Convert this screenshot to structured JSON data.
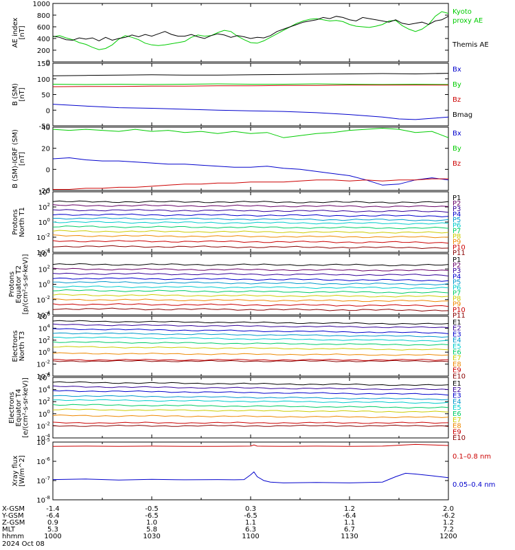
{
  "chart_data": [
    {
      "id": "ae",
      "type": "line",
      "ylabel": [
        "AE index",
        "[nT]"
      ],
      "ylim": [
        0,
        1000
      ],
      "yticks": [
        "0",
        "200",
        "400",
        "600",
        "800",
        "1000"
      ],
      "series": [
        {
          "name": "Kyoto proxy AE",
          "color": "#00cc00",
          "x": [
            0,
            2,
            4,
            6,
            8,
            10,
            12,
            14,
            16,
            18,
            20,
            22,
            24,
            26,
            28,
            30,
            32,
            34,
            36,
            38,
            40,
            42,
            44,
            46,
            48,
            50,
            52,
            54,
            56,
            58,
            60,
            62,
            64,
            66,
            68,
            70,
            72,
            74,
            76,
            78,
            80,
            82,
            84,
            86,
            88,
            90,
            92,
            94,
            96,
            98,
            100,
            102,
            104,
            106,
            108,
            110,
            112,
            114,
            116,
            118,
            120
          ],
          "y": [
            430,
            450,
            410,
            380,
            330,
            300,
            250,
            210,
            230,
            290,
            390,
            450,
            420,
            380,
            320,
            290,
            280,
            290,
            310,
            330,
            350,
            420,
            460,
            440,
            450,
            500,
            540,
            520,
            440,
            380,
            330,
            320,
            360,
            420,
            480,
            540,
            600,
            660,
            700,
            730,
            740,
            720,
            700,
            710,
            690,
            640,
            610,
            600,
            590,
            610,
            640,
            700,
            710,
            620,
            560,
            520,
            560,
            640,
            780,
            860,
            830
          ]
        },
        {
          "name": "Themis AE",
          "color": "#000000",
          "x": [
            0,
            2,
            4,
            6,
            8,
            10,
            12,
            14,
            16,
            18,
            20,
            22,
            24,
            26,
            28,
            30,
            32,
            34,
            36,
            38,
            40,
            42,
            44,
            46,
            48,
            50,
            52,
            54,
            56,
            58,
            60,
            62,
            64,
            66,
            68,
            70,
            72,
            74,
            76,
            78,
            80,
            82,
            84,
            86,
            88,
            90,
            92,
            94,
            96,
            98,
            100,
            102,
            104,
            106,
            108,
            110,
            112,
            114,
            116,
            118,
            120
          ],
          "y": [
            440,
            420,
            380,
            370,
            410,
            390,
            410,
            360,
            420,
            370,
            400,
            420,
            460,
            430,
            470,
            440,
            480,
            520,
            470,
            440,
            440,
            470,
            430,
            400,
            450,
            480,
            460,
            420,
            450,
            430,
            400,
            420,
            410,
            450,
            520,
            560,
            600,
            640,
            680,
            700,
            720,
            760,
            740,
            780,
            760,
            720,
            700,
            760,
            740,
            720,
            700,
            680,
            720,
            660,
            640,
            660,
            680,
            640,
            700,
            720,
            780
          ]
        }
      ],
      "legend": [
        {
          "text": "Kyoto",
          "color": "#00cc00"
        },
        {
          "text": "proxy AE",
          "color": "#00cc00"
        },
        {
          "text": "Themis AE",
          "color": "#000000"
        }
      ]
    },
    {
      "id": "bsm",
      "type": "line",
      "ylabel": [
        "B (SM)",
        "[nT]"
      ],
      "ylim": [
        -50,
        150
      ],
      "yticks": [
        "-50",
        "0",
        "50",
        "100",
        "150"
      ],
      "series": [
        {
          "name": "Bmag",
          "color": "#000000",
          "x": [
            0,
            10,
            20,
            30,
            40,
            50,
            60,
            70,
            80,
            90,
            100,
            110,
            120
          ],
          "y": [
            110,
            111,
            112,
            113,
            112,
            112,
            113,
            114,
            115,
            116,
            117,
            116,
            118
          ]
        },
        {
          "name": "By",
          "color": "#00cc00",
          "x": [
            0,
            10,
            20,
            30,
            40,
            50,
            60,
            70,
            80,
            90,
            100,
            110,
            120
          ],
          "y": [
            83,
            82,
            83,
            82,
            83,
            84,
            83,
            83,
            84,
            83,
            82,
            83,
            82
          ]
        },
        {
          "name": "Bz",
          "color": "#cc0000",
          "x": [
            0,
            10,
            20,
            30,
            40,
            50,
            60,
            70,
            80,
            90,
            100,
            110,
            120
          ],
          "y": [
            75,
            76,
            76,
            77,
            77,
            78,
            78,
            79,
            79,
            80,
            80,
            80,
            80
          ]
        },
        {
          "name": "Bx",
          "color": "#0000cc",
          "x": [
            0,
            10,
            20,
            30,
            40,
            50,
            60,
            70,
            80,
            90,
            100,
            105,
            110,
            115,
            120
          ],
          "y": [
            19,
            13,
            8,
            6,
            3,
            0,
            -2,
            -4,
            -8,
            -14,
            -22,
            -28,
            -30,
            -26,
            -22
          ]
        }
      ],
      "legend": [
        {
          "text": "Bx",
          "color": "#0000cc"
        },
        {
          "text": "By",
          "color": "#00cc00"
        },
        {
          "text": "Bz",
          "color": "#cc0000"
        },
        {
          "text": "Bmag",
          "color": "#000000"
        }
      ]
    },
    {
      "id": "bigrf",
      "type": "line",
      "ylabel": [
        "B (SM)-IGRF (SM)",
        "[nT]"
      ],
      "ylim": [
        -20,
        40
      ],
      "yticks": [
        "-20",
        "0",
        "20",
        "40"
      ],
      "series": [
        {
          "name": "By",
          "color": "#00cc00",
          "x": [
            0,
            5,
            10,
            15,
            20,
            25,
            30,
            35,
            40,
            45,
            50,
            55,
            60,
            65,
            70,
            75,
            80,
            85,
            90,
            95,
            100,
            105,
            110,
            115,
            120
          ],
          "y": [
            38,
            37,
            38,
            37,
            36,
            38,
            36,
            37,
            35,
            36,
            34,
            36,
            34,
            35,
            30,
            32,
            34,
            35,
            37,
            38,
            39,
            38,
            35,
            36,
            30
          ]
        },
        {
          "name": "Bx",
          "color": "#0000cc",
          "x": [
            0,
            5,
            10,
            15,
            20,
            25,
            30,
            35,
            40,
            45,
            50,
            55,
            60,
            65,
            70,
            75,
            80,
            85,
            90,
            95,
            100,
            105,
            110,
            115,
            120
          ],
          "y": [
            10,
            11,
            9,
            8,
            8,
            7,
            6,
            5,
            5,
            4,
            3,
            2,
            2,
            3,
            1,
            0,
            -2,
            -4,
            -6,
            -10,
            -15,
            -14,
            -10,
            -8,
            -10
          ]
        },
        {
          "name": "Bz",
          "color": "#cc0000",
          "x": [
            0,
            5,
            10,
            15,
            20,
            25,
            30,
            35,
            40,
            45,
            50,
            55,
            60,
            65,
            70,
            75,
            80,
            85,
            90,
            95,
            100,
            105,
            110,
            115,
            120
          ],
          "y": [
            -19,
            -19,
            -18,
            -18,
            -17,
            -17,
            -16,
            -15,
            -14,
            -14,
            -13,
            -13,
            -12,
            -12,
            -12,
            -11,
            -10,
            -10,
            -11,
            -10,
            -11,
            -10,
            -10,
            -9,
            -9
          ]
        }
      ],
      "legend": [
        {
          "text": "Bx",
          "color": "#0000cc"
        },
        {
          "text": "By",
          "color": "#00cc00"
        },
        {
          "text": "Bz",
          "color": "#cc0000"
        }
      ]
    },
    {
      "id": "pn",
      "type": "line",
      "log": true,
      "ylabel": [
        "Protons",
        "North T1"
      ],
      "ylim": [
        -4,
        4
      ],
      "yticks": [
        "4",
        "2",
        "0",
        "-2",
        "-4"
      ],
      "series_levels": [
        2.7,
        2.2,
        1.6,
        1.0,
        0.5,
        0.0,
        -0.6,
        -1.2,
        -1.8,
        -2.5,
        -3.2
      ],
      "series_slopes": [
        -0.1,
        -0.15,
        -0.2,
        -0.2,
        -0.25,
        -0.2,
        -0.2,
        -0.2,
        -0.2,
        -0.2,
        -0.2
      ],
      "legend": [
        {
          "text": "P1",
          "color": "#000000"
        },
        {
          "text": "P2",
          "color": "#660066"
        },
        {
          "text": "P3",
          "color": "#330099"
        },
        {
          "text": "P4",
          "color": "#0000cc"
        },
        {
          "text": "P5",
          "color": "#0099cc"
        },
        {
          "text": "P6",
          "color": "#00cccc"
        },
        {
          "text": "P7",
          "color": "#00cc66"
        },
        {
          "text": "P8",
          "color": "#cccc00"
        },
        {
          "text": "P9",
          "color": "#ee8800"
        },
        {
          "text": "P10",
          "color": "#cc0000"
        },
        {
          "text": "P11",
          "color": "#880000"
        }
      ]
    },
    {
      "id": "pe",
      "type": "line",
      "log": true,
      "ylabel": [
        "Protons",
        "Equator T2",
        "[p/(cm²-s-sr-keV)]"
      ],
      "ylim": [
        -4,
        4
      ],
      "yticks": [
        "4",
        "2",
        "0",
        "-2",
        "-4"
      ],
      "series_levels": [
        2.6,
        2.0,
        1.4,
        0.8,
        0.3,
        -0.3,
        -0.8,
        -1.4,
        -2.0,
        -2.6,
        -3.2
      ],
      "series_slopes": [
        -0.1,
        -0.2,
        -0.2,
        -0.3,
        -0.3,
        -0.2,
        -0.3,
        -0.2,
        -0.2,
        -0.2,
        -0.2
      ],
      "legend": [
        {
          "text": "P1",
          "color": "#000000"
        },
        {
          "text": "P2",
          "color": "#660066"
        },
        {
          "text": "P3",
          "color": "#330099"
        },
        {
          "text": "P4",
          "color": "#0000cc"
        },
        {
          "text": "P5",
          "color": "#0099cc"
        },
        {
          "text": "P6",
          "color": "#00cccc"
        },
        {
          "text": "P7",
          "color": "#00cc66"
        },
        {
          "text": "P8",
          "color": "#cccc00"
        },
        {
          "text": "P9",
          "color": "#ee8800"
        },
        {
          "text": "P10",
          "color": "#cc0000"
        },
        {
          "text": "P11",
          "color": "#880000"
        }
      ]
    },
    {
      "id": "en",
      "type": "line",
      "log": true,
      "ylabel": [
        "Electrons",
        "North T3"
      ],
      "ylim": [
        -4,
        6
      ],
      "yticks": [
        "6",
        "4",
        "2",
        "0",
        "-2",
        "-4"
      ],
      "series_levels": [
        5.2,
        4.6,
        3.9,
        3.2,
        2.5,
        1.7,
        0.9,
        -0.2,
        -1.3,
        -1.5
      ],
      "series_slopes": [
        -0.5,
        -0.5,
        -0.7,
        -0.6,
        -0.6,
        -0.5,
        -0.5,
        -0.3,
        0,
        0
      ],
      "legend": [
        {
          "text": "E1",
          "color": "#000000"
        },
        {
          "text": "E2",
          "color": "#330099"
        },
        {
          "text": "E3",
          "color": "#0000cc"
        },
        {
          "text": "E4",
          "color": "#0099cc"
        },
        {
          "text": "E5",
          "color": "#00cccc"
        },
        {
          "text": "E6",
          "color": "#00cc66"
        },
        {
          "text": "E7",
          "color": "#cccc00"
        },
        {
          "text": "E8",
          "color": "#ee8800"
        },
        {
          "text": "E9",
          "color": "#cc0000"
        },
        {
          "text": "E10",
          "color": "#880000"
        }
      ]
    },
    {
      "id": "ee",
      "type": "line",
      "log": true,
      "ylabel": [
        "Electrons",
        "Equator T4",
        "[e/(cm²-s-sr-keV)]"
      ],
      "ylim": [
        -4,
        6
      ],
      "yticks": [
        "6",
        "4",
        "2",
        "0",
        "-2",
        "-4"
      ],
      "series_levels": [
        5.2,
        4.5,
        3.8,
        3.0,
        2.3,
        1.5,
        0.7,
        -0.3,
        -1.5,
        -2.0
      ],
      "series_slopes": [
        -0.5,
        -0.5,
        -0.6,
        -0.6,
        -0.5,
        -0.5,
        -0.4,
        -0.3,
        0,
        0
      ],
      "legend": [
        {
          "text": "E1",
          "color": "#000000"
        },
        {
          "text": "E2",
          "color": "#330099"
        },
        {
          "text": "E3",
          "color": "#0000cc"
        },
        {
          "text": "E4",
          "color": "#0099cc"
        },
        {
          "text": "E5",
          "color": "#00cccc"
        },
        {
          "text": "E6",
          "color": "#00cc66"
        },
        {
          "text": "E7",
          "color": "#cccc00"
        },
        {
          "text": "E8",
          "color": "#ee8800"
        },
        {
          "text": "E9",
          "color": "#cc0000"
        },
        {
          "text": "E10",
          "color": "#880000"
        }
      ]
    },
    {
      "id": "xray",
      "type": "line",
      "log": true,
      "ylabel": [
        "Xray flux",
        "[W/m^2]"
      ],
      "ylim": [
        -8,
        -5
      ],
      "yticks": [
        "-5",
        "-6",
        "-7",
        "-8"
      ],
      "series": [
        {
          "name": "0.1-0.8 nm",
          "color": "#cc0000",
          "x": [
            0,
            10,
            20,
            30,
            40,
            50,
            60,
            61,
            62,
            70,
            80,
            90,
            100,
            110,
            120
          ],
          "y": [
            -5.22,
            -5.21,
            -5.22,
            -5.21,
            -5.22,
            -5.22,
            -5.21,
            -5.15,
            -5.21,
            -5.22,
            -5.21,
            -5.22,
            -5.21,
            -5.12,
            -5.18
          ]
        },
        {
          "name": "0.05-0.4 nm",
          "color": "#0000cc",
          "x": [
            0,
            10,
            20,
            30,
            40,
            50,
            55,
            58,
            60,
            61,
            62,
            64,
            66,
            70,
            80,
            90,
            100,
            104,
            107,
            110,
            115,
            120
          ],
          "y": [
            -6.95,
            -6.92,
            -6.97,
            -6.94,
            -6.96,
            -6.95,
            -6.96,
            -6.95,
            -6.7,
            -6.55,
            -6.8,
            -7.0,
            -7.08,
            -7.12,
            -7.1,
            -7.12,
            -7.08,
            -6.8,
            -6.62,
            -6.66,
            -6.75,
            -6.85
          ]
        }
      ],
      "legend": [
        {
          "text": "0.1–0.8 nm",
          "color": "#cc0000"
        },
        {
          "text": "0.05–0.4 nm",
          "color": "#0000cc"
        }
      ]
    }
  ],
  "xaxis": {
    "ticks_minutes": [
      0,
      30,
      60,
      90,
      120
    ],
    "rows": [
      {
        "label": "X-GSM",
        "values": [
          "-1.4",
          "-0.5",
          "0.3",
          "1.2",
          "2.0"
        ]
      },
      {
        "label": "Y-GSM",
        "values": [
          "-6.4",
          "-6.5",
          "-6.5",
          "-6.4",
          "-6.2"
        ]
      },
      {
        "label": "Z-GSM",
        "values": [
          "0.9",
          "1.0",
          "1.1",
          "1.1",
          "1.2"
        ]
      },
      {
        "label": "MLT",
        "values": [
          "5.3",
          "5.8",
          "6.3",
          "6.7",
          "7.2"
        ]
      },
      {
        "label": "hhmm",
        "values": [
          "1000",
          "1030",
          "1100",
          "1130",
          "1200"
        ]
      }
    ],
    "date": "2024 Oct 08"
  }
}
